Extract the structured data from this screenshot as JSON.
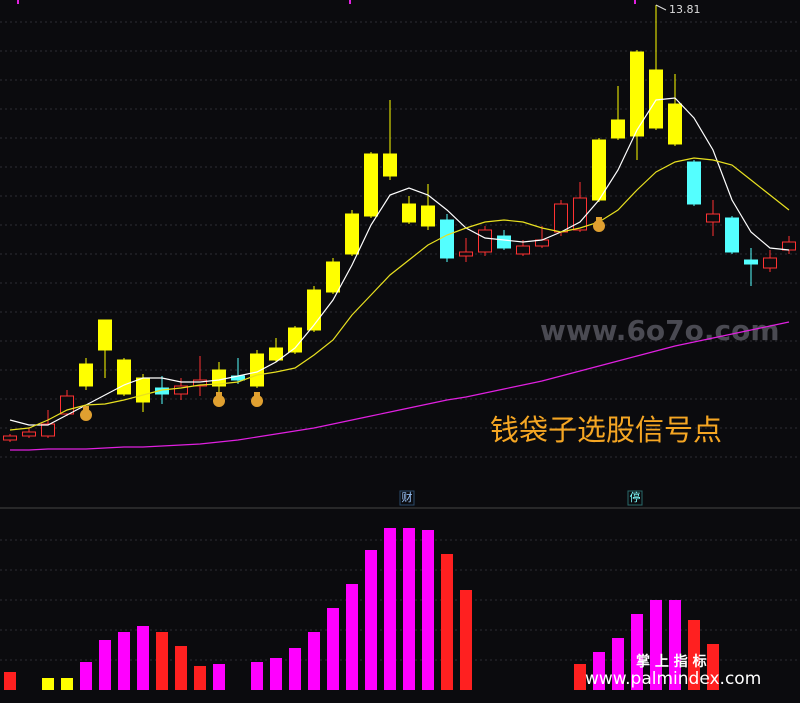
{
  "chart_data": [
    {
      "type": "candlestick",
      "ylim": [
        8.96,
        13.86
      ],
      "open": [
        9.46,
        9.5,
        9.5,
        9.72,
        10.0,
        10.36,
        9.92,
        9.84,
        9.98,
        9.92,
        10.0,
        10.0,
        10.1,
        10.0,
        10.26,
        10.34,
        10.56,
        10.94,
        11.32,
        11.7,
        12.1,
        11.64,
        11.6,
        11.66,
        11.3,
        11.34,
        11.5,
        11.32,
        11.4,
        11.54,
        11.56,
        11.86,
        12.48,
        12.5,
        12.58,
        12.42,
        12.24,
        11.64,
        11.68,
        11.26,
        11.18,
        11.36
      ],
      "high": [
        9.52,
        9.58,
        9.76,
        9.96,
        10.28,
        10.66,
        10.28,
        10.12,
        10.1,
        10.08,
        10.3,
        10.24,
        10.28,
        10.36,
        10.48,
        10.6,
        11.0,
        11.28,
        11.76,
        12.34,
        12.86,
        11.9,
        12.02,
        11.72,
        11.48,
        11.6,
        11.56,
        11.46,
        11.6,
        11.86,
        12.04,
        12.48,
        13.0,
        13.36,
        13.81,
        13.12,
        12.26,
        11.86,
        11.7,
        11.38,
        11.36,
        11.5
      ],
      "low": [
        9.44,
        9.48,
        9.48,
        9.7,
        9.96,
        10.08,
        9.9,
        9.74,
        9.82,
        9.86,
        9.9,
        9.94,
        10.02,
        9.98,
        10.24,
        10.32,
        10.54,
        10.92,
        11.3,
        11.68,
        12.06,
        11.62,
        11.56,
        11.24,
        11.24,
        11.3,
        11.36,
        11.3,
        11.38,
        11.5,
        11.54,
        11.84,
        12.46,
        12.26,
        12.56,
        12.4,
        11.8,
        11.5,
        11.32,
        11.0,
        11.14,
        11.32
      ],
      "close": [
        9.5,
        9.54,
        9.62,
        9.9,
        10.22,
        10.66,
        10.26,
        10.08,
        9.92,
        10.0,
        10.06,
        10.16,
        10.06,
        10.32,
        10.38,
        10.58,
        10.96,
        11.24,
        11.72,
        12.32,
        12.32,
        11.82,
        11.8,
        11.28,
        11.34,
        11.56,
        11.38,
        11.4,
        11.46,
        11.82,
        11.88,
        12.46,
        12.66,
        13.34,
        13.16,
        12.82,
        11.82,
        11.72,
        11.34,
        11.22,
        11.28,
        11.44
      ],
      "colors": [
        "#ff3232",
        "#ff3232",
        "#ff3232",
        "#ff3232",
        "#ffff00",
        "#ffff00",
        "#ffff00",
        "#ffff00",
        "#54ffff",
        "#ff3232",
        "#ff3232",
        "#ffff00",
        "#54ffff",
        "#ffff00",
        "#ffff00",
        "#ffff00",
        "#ffff00",
        "#ffff00",
        "#ffff00",
        "#ffff00",
        "#ffff00",
        "#ffff00",
        "#ffff00",
        "#54ffff",
        "#ff3232",
        "#ff3232",
        "#54ffff",
        "#ff3232",
        "#ff3232",
        "#ff3232",
        "#ff3232",
        "#ffff00",
        "#ffff00",
        "#ffff00",
        "#ffff00",
        "#ffff00",
        "#54ffff",
        "#ff3232",
        "#54ffff",
        "#54ffff",
        "#ff3232",
        "#ff3232"
      ],
      "series": [
        {
          "color": "#ffffff",
          "values": [
            9.66,
            9.61,
            9.61,
            9.71,
            9.81,
            9.91,
            10.01,
            10.08,
            10.08,
            10.04,
            10.04,
            10.06,
            10.1,
            10.14,
            10.24,
            10.38,
            10.61,
            10.86,
            11.21,
            11.61,
            11.91,
            11.98,
            11.91,
            11.76,
            11.58,
            11.48,
            11.46,
            11.44,
            11.46,
            11.54,
            11.64,
            11.86,
            12.16,
            12.56,
            12.86,
            12.88,
            12.68,
            12.36,
            11.86,
            11.54,
            11.38,
            11.36
          ]
        },
        {
          "color": "#e8e020",
          "values": [
            9.56,
            9.58,
            9.66,
            9.76,
            9.81,
            9.82,
            9.86,
            9.91,
            9.96,
            9.98,
            10.01,
            10.02,
            10.04,
            10.11,
            10.14,
            10.18,
            10.31,
            10.46,
            10.71,
            10.91,
            11.11,
            11.26,
            11.41,
            11.51,
            11.58,
            11.64,
            11.66,
            11.64,
            11.58,
            11.54,
            11.58,
            11.64,
            11.76,
            11.96,
            12.14,
            12.24,
            12.28,
            12.26,
            12.21,
            12.06,
            11.91,
            11.76
          ]
        },
        {
          "color": "#e020e0",
          "values": [
            9.36,
            9.36,
            9.37,
            9.37,
            9.37,
            9.38,
            9.39,
            9.39,
            9.4,
            9.41,
            9.42,
            9.44,
            9.46,
            9.49,
            9.52,
            9.55,
            9.58,
            9.62,
            9.66,
            9.7,
            9.74,
            9.78,
            9.82,
            9.86,
            9.89,
            9.93,
            9.97,
            10.01,
            10.05,
            10.1,
            10.15,
            10.2,
            10.25,
            10.3,
            10.35,
            10.4,
            10.44,
            10.48,
            10.52,
            10.56,
            10.6,
            10.64
          ]
        }
      ],
      "annotation": "钱袋子选股信号点",
      "marker_1": "财",
      "marker_2": "停"
    },
    {
      "type": "bar",
      "ylim": [
        0,
        180
      ],
      "values": [
        18,
        null,
        12,
        12,
        28,
        50,
        58,
        64,
        58,
        44,
        24,
        26,
        null,
        28,
        32,
        42,
        58,
        82,
        106,
        140,
        162,
        162,
        160,
        136,
        100,
        null,
        null,
        null,
        null,
        null,
        26,
        38,
        52,
        76,
        90,
        90,
        70,
        46,
        null,
        null,
        null,
        null
      ],
      "colors": [
        "#ff2020",
        null,
        "#ffff00",
        "#ffff00",
        "#ff00ff",
        "#ff00ff",
        "#ff00ff",
        "#ff00ff",
        "#ff2020",
        "#ff2020",
        "#ff2020",
        "#ff00ff",
        null,
        "#ff00ff",
        "#ff00ff",
        "#ff00ff",
        "#ff00ff",
        "#ff00ff",
        "#ff00ff",
        "#ff00ff",
        "#ff00ff",
        "#ff00ff",
        "#ff00ff",
        "#ff2020",
        "#ff2020",
        null,
        null,
        null,
        null,
        null,
        "#ff2020",
        "#ff00ff",
        "#ff00ff",
        "#ff00ff",
        "#ff00ff",
        "#ff00ff",
        "#ff2020",
        "#ff2020",
        null,
        null,
        null,
        null
      ]
    }
  ],
  "watermarks": {
    "site_1": "www.6o7o.com",
    "site_2_name": "掌 上 指 标",
    "site_2_url": "www.palmindex.com"
  }
}
